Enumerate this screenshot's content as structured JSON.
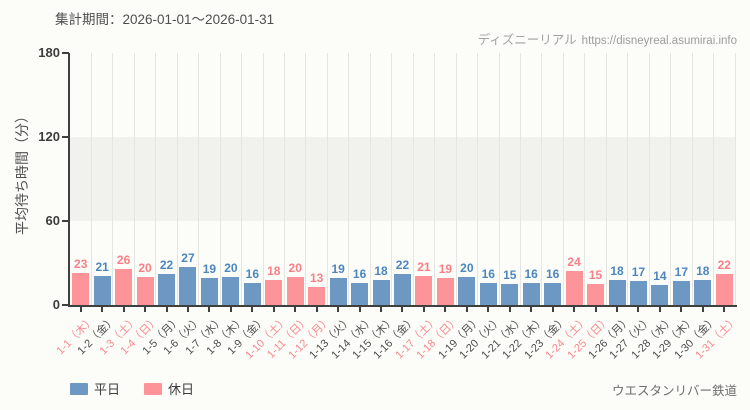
{
  "header": {
    "period_label": "集計期間：2026-01-01～2026-01-31"
  },
  "watermark": {
    "brand": "ディズニーリアル",
    "url": "https://disneyreal.asumirai.info"
  },
  "chart_data": {
    "type": "bar",
    "title": "",
    "xlabel": "",
    "ylabel": "平均待ち時間（分）",
    "ylim": [
      0,
      180
    ],
    "y_ticks": [
      0,
      60,
      120,
      180
    ],
    "shaded_band": [
      60,
      120
    ],
    "grid": "vertical",
    "legend_position": "bottom-left",
    "categories": [
      "1-1（木）",
      "1-2（金）",
      "1-3（土）",
      "1-4（日）",
      "1-5（月）",
      "1-6（火）",
      "1-7（水）",
      "1-8（木）",
      "1-9（金）",
      "1-10（土）",
      "1-11（日）",
      "1-12（月）",
      "1-13（火）",
      "1-14（水）",
      "1-15（木）",
      "1-16（金）",
      "1-17（土）",
      "1-18（日）",
      "1-19（月）",
      "1-20（火）",
      "1-21（水）",
      "1-22（木）",
      "1-23（金）",
      "1-24（土）",
      "1-25（日）",
      "1-26（月）",
      "1-27（火）",
      "1-28（水）",
      "1-29（木）",
      "1-30（金）",
      "1-31（土）"
    ],
    "values": [
      23,
      21,
      26,
      20,
      22,
      27,
      19,
      20,
      16,
      18,
      20,
      13,
      19,
      16,
      18,
      22,
      21,
      19,
      20,
      16,
      15,
      16,
      16,
      24,
      15,
      18,
      17,
      14,
      17,
      18,
      22
    ],
    "day_types": [
      "holiday",
      "weekday",
      "holiday",
      "holiday",
      "weekday",
      "weekday",
      "weekday",
      "weekday",
      "weekday",
      "holiday",
      "holiday",
      "holiday",
      "weekday",
      "weekday",
      "weekday",
      "weekday",
      "holiday",
      "holiday",
      "weekday",
      "weekday",
      "weekday",
      "weekday",
      "weekday",
      "holiday",
      "holiday",
      "weekday",
      "weekday",
      "weekday",
      "weekday",
      "weekday",
      "holiday"
    ],
    "colors": {
      "weekday_bar": "#6d98c3",
      "holiday_bar": "#fc9499",
      "weekday_value": "#4b86bd",
      "holiday_value": "#f97e85",
      "weekday_tick_label": "#4d4d4d",
      "holiday_tick_label": "#f9888d"
    },
    "legend": [
      {
        "label": "平日",
        "type": "weekday"
      },
      {
        "label": "休日",
        "type": "holiday"
      }
    ]
  },
  "footer": {
    "attraction_name": "ウエスタンリバー鉄道"
  }
}
